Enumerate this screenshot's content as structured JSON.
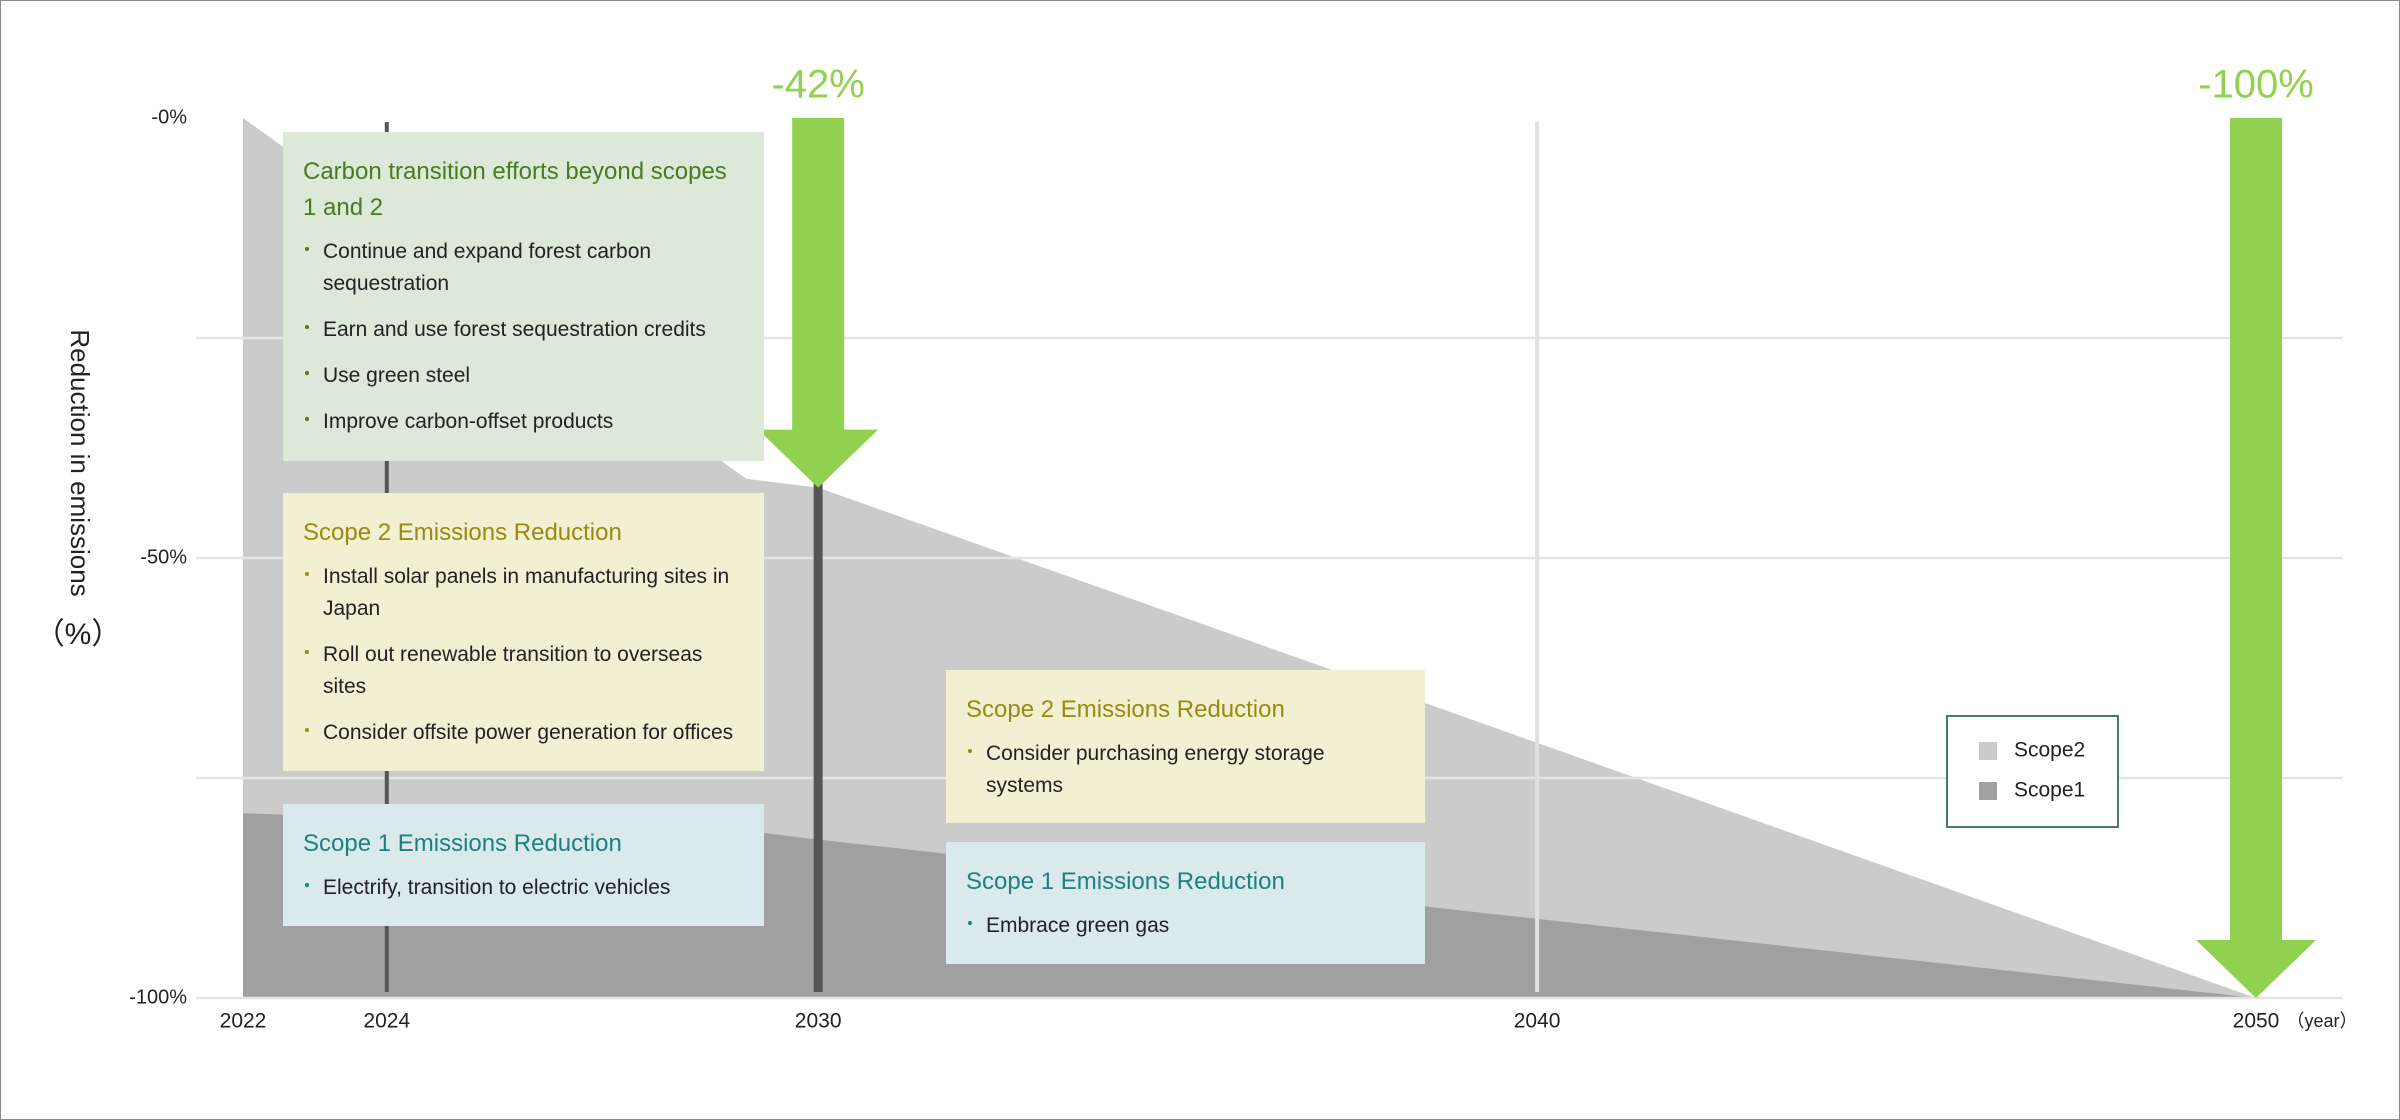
{
  "chart_data": {
    "type": "area",
    "ylabel": "Reduction in emissions",
    "ylabel_unit": "（%）",
    "xlabel_unit": "（year）",
    "x": [
      2022,
      2029,
      2030,
      2050
    ],
    "xlim": [
      2022,
      2050
    ],
    "xticks": [
      2022,
      2024,
      2030,
      2040,
      2050
    ],
    "ylim": [
      -100,
      0
    ],
    "yticks": [
      {
        "value": 0,
        "label": "-0%"
      },
      {
        "value": -50,
        "label": "-50%"
      },
      {
        "value": -100,
        "label": "-100%"
      }
    ],
    "ygrid": [
      -25,
      -50,
      -75,
      -100
    ],
    "milestones": [
      2024,
      2030
    ],
    "xgrid": [
      2040
    ],
    "series": [
      {
        "name": "Scope2",
        "color": "#cbcbcb",
        "values": [
          0,
          -41,
          -42,
          -100
        ]
      },
      {
        "name": "Scope1",
        "color": "#a0a0a0",
        "values": [
          -79,
          -81,
          -82,
          -100
        ]
      }
    ],
    "legend": "right",
    "annotations": [
      {
        "x": 2030,
        "value": -42,
        "label": "-42%",
        "color": "#92d050"
      },
      {
        "x": 2050,
        "value": -100,
        "label": "-100%",
        "color": "#92d050"
      }
    ]
  },
  "boxes": [
    {
      "title": "Carbon transition efforts beyond scopes 1 and 2",
      "background": "#dce8d8",
      "accent": "#4a7a22",
      "items": [
        "Continue and expand forest carbon sequestration",
        "Earn and use forest sequestration credits",
        "Use green steel",
        "Improve carbon-offset products"
      ]
    },
    {
      "title": "Scope 2 Emissions Reduction",
      "background": "#f1f0d3",
      "accent": "#9a8a10",
      "items": [
        "Install solar panels in manufacturing sites in Japan",
        "Roll out renewable transition to overseas sites",
        "Consider offsite power generation for offices"
      ]
    },
    {
      "title": "Scope 1 Emissions Reduction",
      "background": "#d9e9ec",
      "accent": "#1f8080",
      "items": [
        "Electrify, transition to electric vehicles"
      ]
    },
    {
      "title": "Scope 2 Emissions Reduction",
      "background": "#f1f0d3",
      "accent": "#9a8a10",
      "items": [
        "Consider purchasing energy storage systems"
      ]
    },
    {
      "title": "Scope 1 Emissions Reduction",
      "background": "#d9e9ec",
      "accent": "#1f8080",
      "items": [
        "Embrace green gas"
      ]
    }
  ]
}
